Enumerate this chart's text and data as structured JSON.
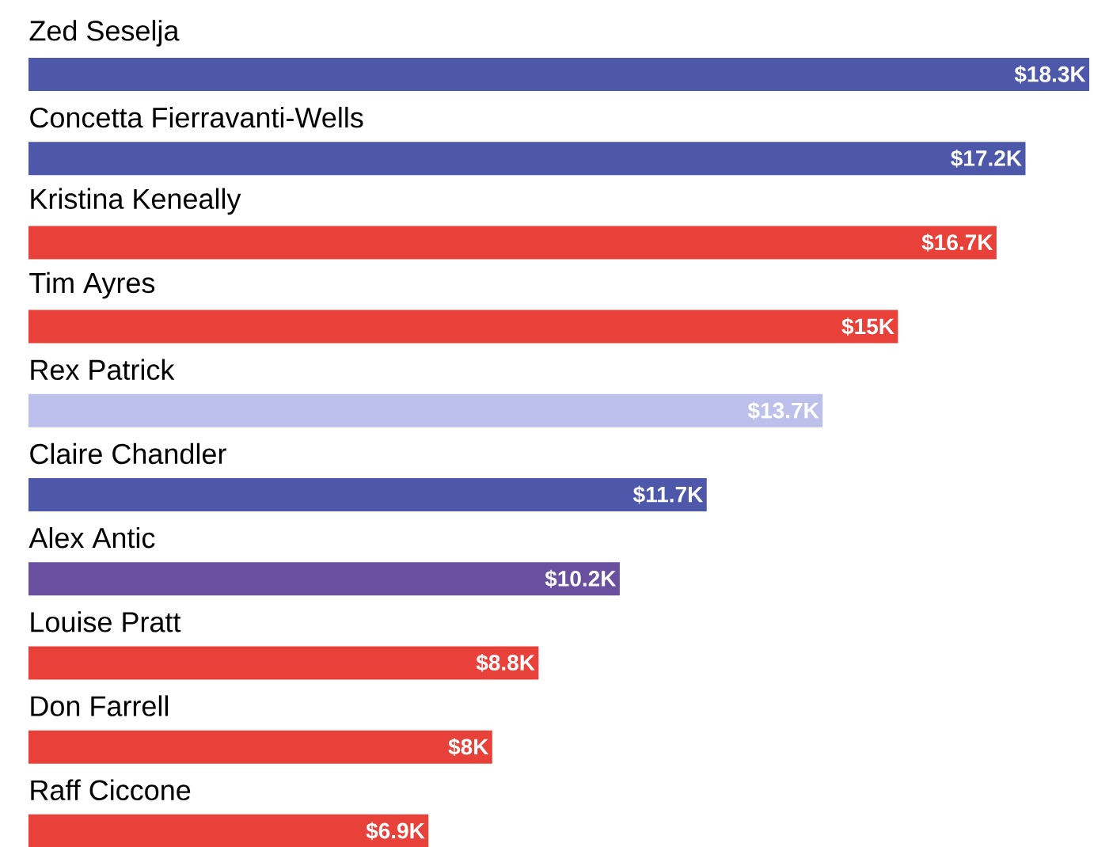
{
  "chart_data": {
    "type": "bar",
    "orientation": "horizontal",
    "categories": [
      "Zed Seselja",
      "Concetta Fierravanti-Wells",
      "Kristina Keneally",
      "Tim Ayres",
      "Rex Patrick",
      "Claire Chandler",
      "Alex Antic",
      "Louise Pratt",
      "Don Farrell",
      "Raff Ciccone"
    ],
    "values": [
      18.3,
      17.2,
      16.7,
      15,
      13.7,
      11.7,
      10.2,
      8.8,
      8,
      6.9
    ],
    "value_labels": [
      "$18.3K",
      "$17.2K",
      "$16.7K",
      "$15K",
      "$13.7K",
      "$11.7K",
      "$10.2K",
      "$8.8K",
      "$8K",
      "$6.9K"
    ],
    "colors": [
      "#4e58ab",
      "#4e58ab",
      "#e8413a",
      "#e8413a",
      "#bcc0ea",
      "#4e58ab",
      "#6a4f9e",
      "#e8413a",
      "#e8413a",
      "#e8413a"
    ]
  }
}
